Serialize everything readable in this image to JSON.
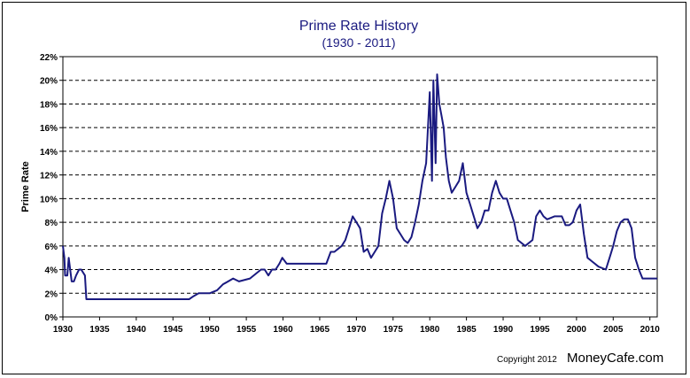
{
  "chart_data": {
    "type": "line",
    "title": "Prime Rate History",
    "subtitle": "(1930 - 2011)",
    "xlabel": "",
    "ylabel": "Prime Rate",
    "xlim": [
      1930,
      2011
    ],
    "ylim": [
      0,
      22
    ],
    "y_tick_labels": [
      "0%",
      "2%",
      "4%",
      "6%",
      "8%",
      "10%",
      "12%",
      "14%",
      "16%",
      "18%",
      "20%",
      "22%"
    ],
    "y_tick_values": [
      0,
      2,
      4,
      6,
      8,
      10,
      12,
      14,
      16,
      18,
      20,
      22
    ],
    "x_tick_labels": [
      "1930",
      "1935",
      "1940",
      "1945",
      "1950",
      "1955",
      "1960",
      "1965",
      "1970",
      "1975",
      "1980",
      "1985",
      "1990",
      "1995",
      "2000",
      "2005",
      "2010"
    ],
    "x_tick_values": [
      1930,
      1935,
      1940,
      1945,
      1950,
      1955,
      1960,
      1965,
      1970,
      1975,
      1980,
      1985,
      1990,
      1995,
      2000,
      2005,
      2010
    ],
    "grid": "horizontal dashed",
    "line_color": "#1a1a80",
    "series": [
      {
        "x": [
          1930.0,
          1930.2,
          1930.3,
          1930.6,
          1930.8,
          1931.2,
          1931.5,
          1931.8,
          1932.2,
          1932.5,
          1933.0,
          1933.2,
          1933.4,
          1940.0,
          1945.0,
          1947.2,
          1947.8,
          1948.5,
          1950.0,
          1951.0,
          1951.8,
          1953.2,
          1954.0,
          1955.5,
          1956.5,
          1957.0,
          1957.5,
          1958.0,
          1958.5,
          1959.0,
          1959.5,
          1959.9,
          1960.5,
          1961.0,
          1965.0,
          1965.9,
          1966.5,
          1967.0,
          1967.5,
          1968.0,
          1968.5,
          1969.0,
          1969.5,
          1970.0,
          1970.5,
          1971.0,
          1971.5,
          1972.0,
          1972.5,
          1973.0,
          1973.5,
          1974.0,
          1974.5,
          1975.0,
          1975.5,
          1976.0,
          1976.5,
          1977.0,
          1977.5,
          1978.0,
          1978.5,
          1979.0,
          1979.5,
          1980.0,
          1980.3,
          1980.5,
          1980.8,
          1981.0,
          1981.3,
          1981.6,
          1981.9,
          1982.2,
          1982.6,
          1983.0,
          1983.5,
          1984.0,
          1984.5,
          1985.0,
          1985.5,
          1986.0,
          1986.5,
          1987.0,
          1987.5,
          1988.0,
          1988.5,
          1989.0,
          1989.5,
          1990.0,
          1990.5,
          1991.0,
          1991.5,
          1992.0,
          1993.0,
          1994.0,
          1994.5,
          1995.0,
          1995.5,
          1996.0,
          1997.0,
          1998.0,
          1998.5,
          1999.0,
          1999.5,
          2000.0,
          2000.5,
          2001.0,
          2001.5,
          2002.0,
          2003.0,
          2004.0,
          2004.5,
          2005.0,
          2005.5,
          2006.0,
          2006.5,
          2007.0,
          2007.5,
          2008.0,
          2008.5,
          2009.0,
          2010.0,
          2011.0
        ],
        "values": [
          6.0,
          5.0,
          3.5,
          3.5,
          5.0,
          3.0,
          3.0,
          3.5,
          4.0,
          4.0,
          3.5,
          1.5,
          1.5,
          1.5,
          1.5,
          1.5,
          1.75,
          2.0,
          2.0,
          2.25,
          2.75,
          3.25,
          3.0,
          3.25,
          3.75,
          4.0,
          4.0,
          3.5,
          4.0,
          4.0,
          4.5,
          5.0,
          4.5,
          4.5,
          4.5,
          4.5,
          5.5,
          5.5,
          5.75,
          6.0,
          6.5,
          7.5,
          8.5,
          8.0,
          7.5,
          5.5,
          5.75,
          5.0,
          5.5,
          6.0,
          8.75,
          10.0,
          11.5,
          10.0,
          7.5,
          7.0,
          6.5,
          6.25,
          6.75,
          8.0,
          9.5,
          11.5,
          13.0,
          19.0,
          11.5,
          20.0,
          13.0,
          20.5,
          18.0,
          17.0,
          16.0,
          13.5,
          11.5,
          10.5,
          11.0,
          11.5,
          13.0,
          10.5,
          9.5,
          8.5,
          7.5,
          8.0,
          9.0,
          9.0,
          10.5,
          11.5,
          10.5,
          10.0,
          10.0,
          9.0,
          8.0,
          6.5,
          6.0,
          6.5,
          8.5,
          9.0,
          8.5,
          8.25,
          8.5,
          8.5,
          7.75,
          7.75,
          8.0,
          9.0,
          9.5,
          7.0,
          5.0,
          4.75,
          4.25,
          4.0,
          5.0,
          6.0,
          7.25,
          8.0,
          8.25,
          8.25,
          7.5,
          5.0,
          4.0,
          3.25,
          3.25,
          3.25
        ]
      }
    ]
  },
  "copyright": {
    "small": "Copyright 2012",
    "big": "MoneyCafe.com"
  }
}
